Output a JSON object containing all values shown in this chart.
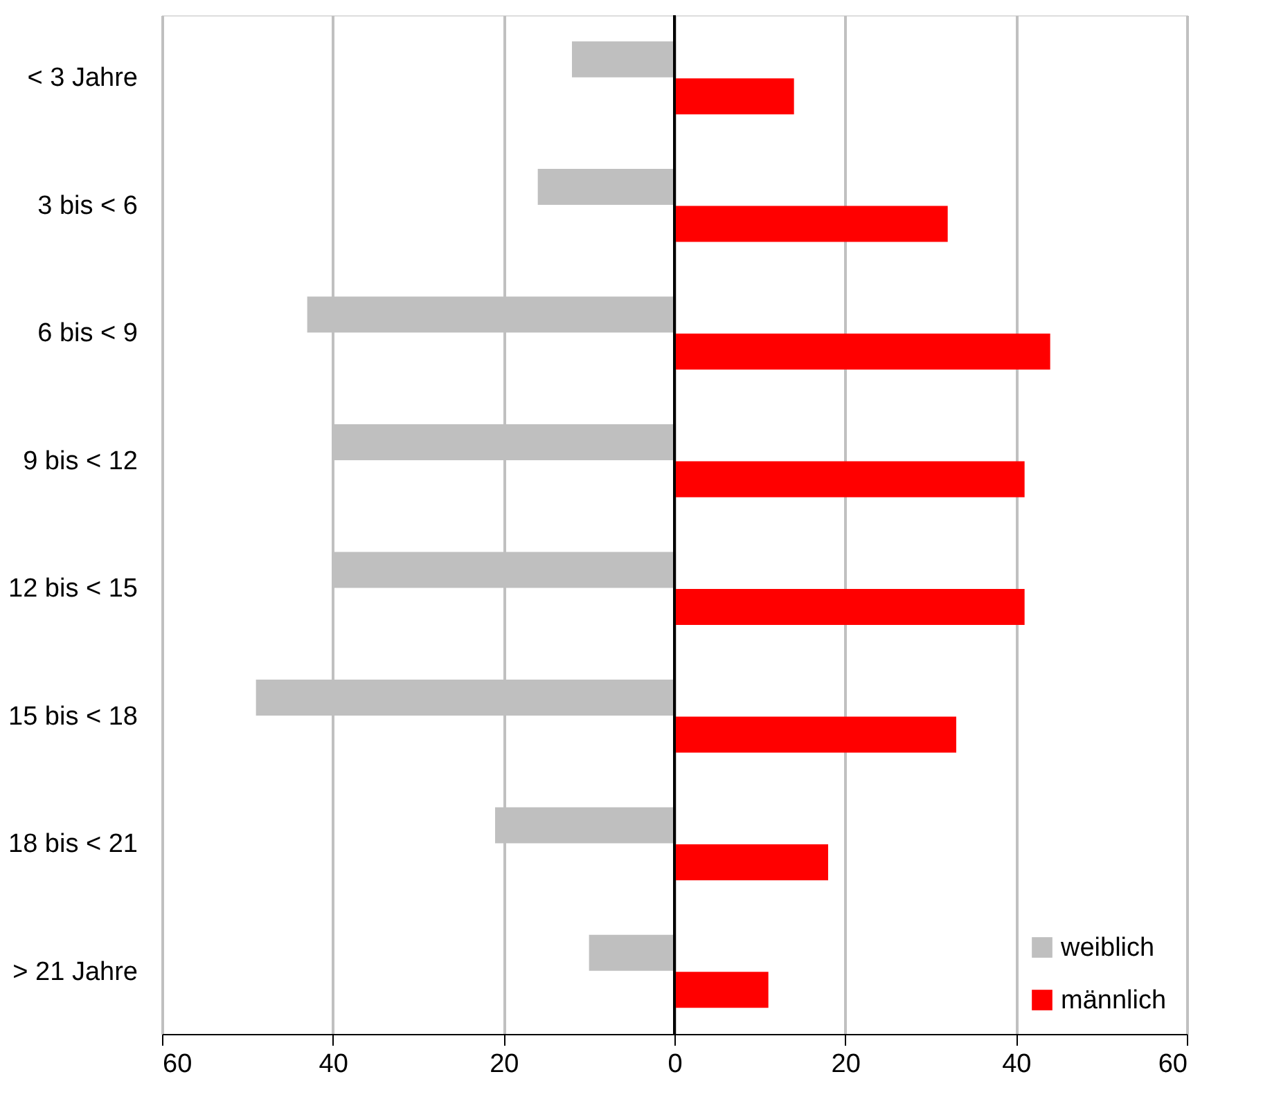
{
  "chart_data": {
    "type": "bar",
    "orientation": "horizontal",
    "categories": [
      "< 3 Jahre",
      "3 bis < 6",
      "6 bis < 9",
      "9 bis < 12",
      "12 bis < 15",
      "15 bis < 18",
      "18 bis < 21",
      "> 21 Jahre"
    ],
    "series": [
      {
        "name": "weiblich",
        "color": "#bfbfbf",
        "values": [
          -12,
          -16,
          -43,
          -40,
          -40,
          -49,
          -21,
          -10
        ]
      },
      {
        "name": "männlich",
        "color": "#ff0000",
        "values": [
          14,
          32,
          44,
          41,
          41,
          33,
          18,
          11
        ]
      }
    ],
    "xlim": [
      -60,
      60
    ],
    "xticks": [
      {
        "value": -60,
        "label": "60"
      },
      {
        "value": -40,
        "label": "40"
      },
      {
        "value": -20,
        "label": "20"
      },
      0,
      20,
      40,
      60
    ],
    "grid": "x",
    "legend": "bottom right",
    "ref_lines": [
      {
        "axis": "x",
        "value": 0,
        "color": "#000000"
      }
    ]
  }
}
